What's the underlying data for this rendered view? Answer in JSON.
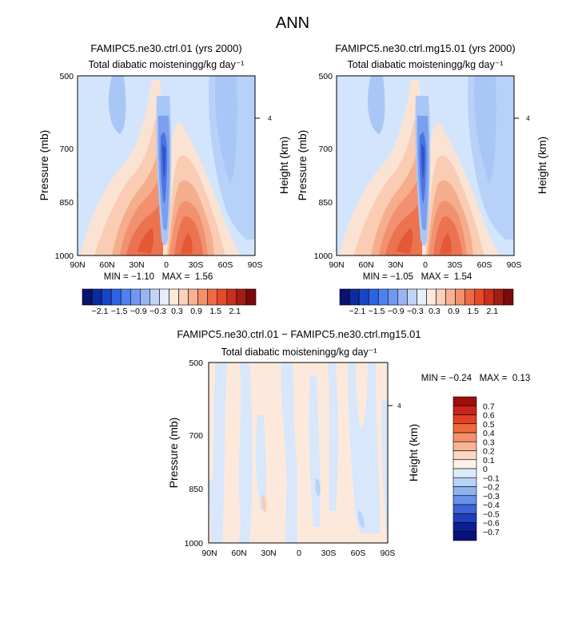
{
  "figure_title": "ANN",
  "chart_data": [
    {
      "type": "heatmap",
      "title": "FAMIPC5.ne30.ctrl.01 (yrs 2000)",
      "subtitle": "Total diabatic moistening",
      "units": "g/kg day⁻¹",
      "xlabel": "",
      "ylabel": "Pressure (mb)",
      "ylabel_right": "Height (km)",
      "x_ticks": [
        "90N",
        "60N",
        "30N",
        "0",
        "30S",
        "60S",
        "90S"
      ],
      "y_ticks": [
        "500",
        "700",
        "850",
        "1000"
      ],
      "y_right_ticks": [
        "4"
      ],
      "stats": {
        "min_label": "MIN =",
        "min": "−1.10",
        "max_label": "MAX =",
        "max": "1.56"
      },
      "regions": [
        {
          "lat": 0,
          "p_top": 560,
          "p_bot": 985,
          "value": -0.6,
          "kind": "blue_spike"
        },
        {
          "lat": 35,
          "p_top": 650,
          "p_bot": 1000,
          "value": 0.9,
          "kind": "nh_max"
        },
        {
          "lat": -20,
          "p_top": 690,
          "p_bot": 1000,
          "value": 0.9,
          "kind": "sh_max"
        },
        {
          "lat": 60,
          "p_top": 520,
          "p_bot": 650,
          "value": -0.3,
          "kind": "upper_blue"
        },
        {
          "lat": -75,
          "p_top": 500,
          "p_bot": 850,
          "value": -0.3,
          "kind": "upper_blue"
        }
      ]
    },
    {
      "type": "heatmap",
      "title": "FAMIPC5.ne30.ctrl.mg15.01 (yrs 2000)",
      "subtitle": "Total diabatic moistening",
      "units": "g/kg day⁻¹",
      "xlabel": "",
      "ylabel": "Pressure (mb)",
      "ylabel_right": "Height (km)",
      "x_ticks": [
        "90N",
        "60N",
        "30N",
        "0",
        "30S",
        "60S",
        "90S"
      ],
      "y_ticks": [
        "500",
        "700",
        "850",
        "1000"
      ],
      "y_right_ticks": [
        "4"
      ],
      "stats": {
        "min_label": "MIN =",
        "min": "−1.05",
        "max_label": "MAX =",
        "max": "1.54"
      },
      "regions": [
        {
          "lat": 0,
          "p_top": 560,
          "p_bot": 985,
          "value": -0.6,
          "kind": "blue_spike"
        },
        {
          "lat": 35,
          "p_top": 650,
          "p_bot": 1000,
          "value": 0.9,
          "kind": "nh_max"
        },
        {
          "lat": -20,
          "p_top": 690,
          "p_bot": 1000,
          "value": 0.9,
          "kind": "sh_max"
        },
        {
          "lat": 60,
          "p_top": 520,
          "p_bot": 650,
          "value": -0.3,
          "kind": "upper_blue"
        },
        {
          "lat": -75,
          "p_top": 500,
          "p_bot": 850,
          "value": -0.3,
          "kind": "upper_blue"
        }
      ]
    },
    {
      "type": "heatmap",
      "title": "FAMIPC5.ne30.ctrl.01 − FAMIPC5.ne30.ctrl.mg15.01",
      "subtitle": "Total diabatic moistening",
      "units": "g/kg day⁻¹",
      "xlabel": "",
      "ylabel": "Pressure (mb)",
      "ylabel_right": "Height (km)",
      "x_ticks": [
        "90N",
        "60N",
        "30N",
        "0",
        "30S",
        "60S",
        "90S"
      ],
      "y_ticks": [
        "500",
        "700",
        "850",
        "1000"
      ],
      "y_right_ticks": [
        "4"
      ],
      "stats": {
        "min_label": "MIN =",
        "min": "−0.24",
        "max_label": "MAX =",
        "max": "0.13"
      },
      "regions": []
    }
  ],
  "colorbar_main": {
    "labels": [
      "−2.1",
      "−1.5",
      "−0.9",
      "−0.3",
      "0.3",
      "0.9",
      "1.5",
      "2.1"
    ],
    "colors": [
      "#08146e",
      "#0d2a9e",
      "#1745c8",
      "#2d64e6",
      "#4d82ee",
      "#7098f0",
      "#98b4f3",
      "#c1d4f6",
      "#e6eefc",
      "#fde9dc",
      "#fbd1b8",
      "#f8b291",
      "#f4906a",
      "#ef6a43",
      "#e64a26",
      "#c9301c",
      "#a31d14",
      "#7c0a0a"
    ]
  },
  "colorbar_diff": {
    "labels": [
      "0.7",
      "0.6",
      "0.5",
      "0.4",
      "0.3",
      "0.2",
      "0.1",
      "0",
      "−0.1",
      "−0.2",
      "−0.3",
      "−0.4",
      "−0.5",
      "−0.6",
      "−0.7"
    ],
    "colors": [
      "#a00d0d",
      "#c9231a",
      "#e34024",
      "#f06a3c",
      "#f5906a",
      "#f8b497",
      "#fbd7c2",
      "#fdf0e6",
      "#dceafc",
      "#b9d2f7",
      "#8fb2f0",
      "#6990ea",
      "#3d64d6",
      "#1f3fba",
      "#0e1f96",
      "#08127a"
    ]
  },
  "colors": {
    "bg_blue": "#d3e5fc",
    "bg_diff": "#fce9dc"
  }
}
